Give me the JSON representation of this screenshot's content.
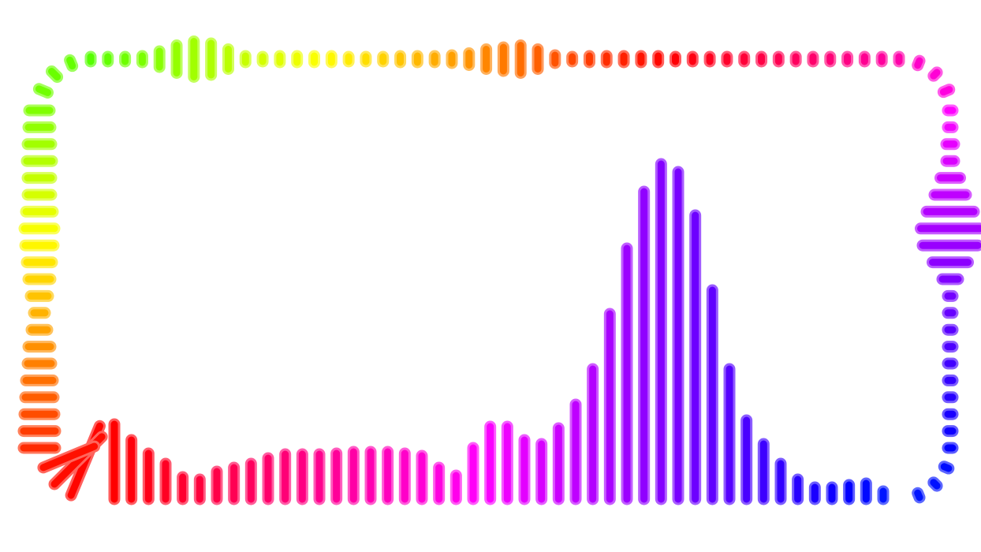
{
  "visualizer": {
    "corner_bottom_left": [
      95,
      85,
      70
    ],
    "left": [
      40,
      40,
      38,
      36,
      34,
      30,
      28,
      20,
      14,
      22,
      28,
      32,
      36,
      38,
      34,
      30,
      30,
      32,
      30,
      28,
      26
    ],
    "corner_top_left": [
      12,
      10,
      8
    ],
    "top": [
      6,
      6,
      6,
      8,
      20,
      35,
      45,
      40,
      25,
      8,
      6,
      8,
      8,
      8,
      8,
      6,
      6,
      6,
      8,
      8,
      8,
      10,
      15,
      25,
      30,
      35,
      25,
      10,
      6,
      8,
      8,
      8,
      8,
      8,
      6,
      6,
      6,
      6,
      6,
      6,
      6,
      6,
      6,
      6,
      6,
      6,
      6,
      6
    ],
    "corner_top_right": [
      6,
      6,
      8
    ],
    "right": [
      6,
      6,
      10,
      10,
      25,
      40,
      60,
      75,
      70,
      45,
      20,
      6,
      6,
      6,
      6,
      6,
      6,
      6,
      6,
      6,
      6
    ],
    "corner_bottom_right": [
      6,
      6,
      6
    ],
    "bottom": [
      10,
      20,
      18,
      15,
      15,
      25,
      45,
      70,
      100,
      165,
      265,
      360,
      415,
      425,
      390,
      318,
      235,
      165,
      120,
      90,
      70,
      75,
      92,
      92,
      65,
      30,
      40,
      55,
      58,
      60,
      60,
      60,
      58,
      57,
      57,
      57,
      52,
      45,
      40,
      35,
      25,
      28,
      45,
      58,
      75,
      95
    ]
  }
}
